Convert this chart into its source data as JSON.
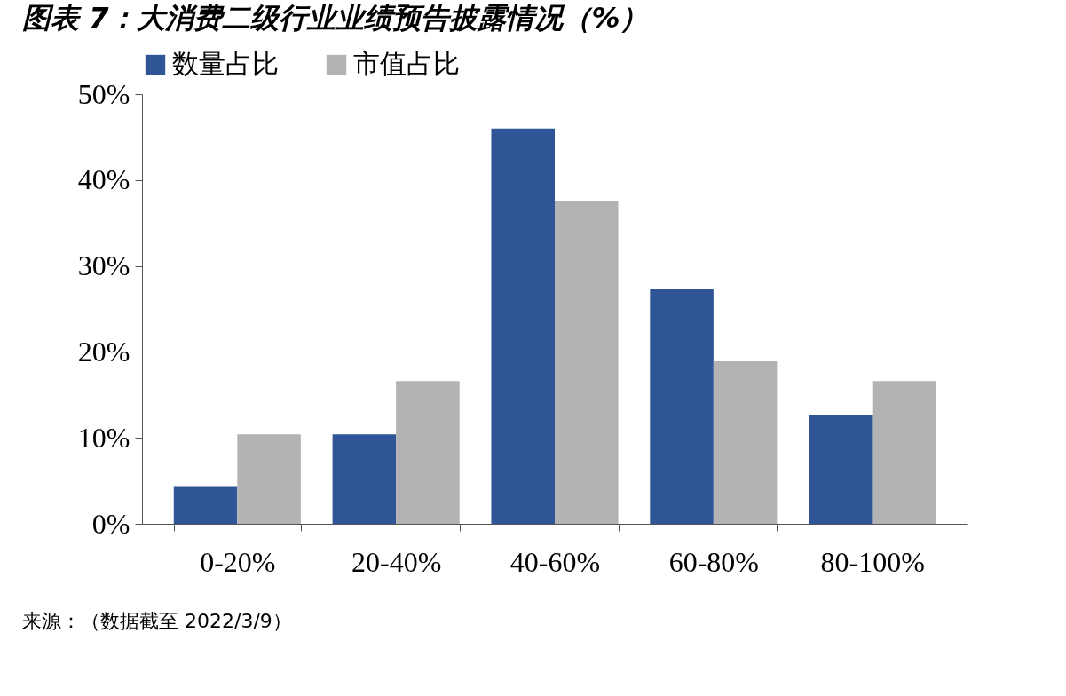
{
  "chart_data": {
    "type": "bar",
    "title": "图表 7：大消费二级行业业绩预告披露情况（%）",
    "categories": [
      "0-20%",
      "20-40%",
      "40-60%",
      "60-80%",
      "80-100%"
    ],
    "series": [
      {
        "name": "数量占比",
        "color": "#2f5597",
        "values": [
          4.3,
          10.4,
          46.0,
          27.3,
          12.7
        ]
      },
      {
        "name": "市值占比",
        "color": "#b3b3b3",
        "values": [
          10.4,
          16.6,
          37.6,
          18.9,
          16.6
        ]
      }
    ],
    "ylim": [
      0,
      50
    ],
    "yticks": [
      {
        "value": 0,
        "label": "0%"
      },
      {
        "value": 10,
        "label": "10%"
      },
      {
        "value": 20,
        "label": "20%"
      },
      {
        "value": 30,
        "label": "30%"
      },
      {
        "value": 40,
        "label": "40%"
      },
      {
        "value": 50,
        "label": "50%"
      }
    ],
    "legend": "top",
    "grid": false,
    "annotations": [
      "来源：（数据截至 2022/3/9）"
    ]
  }
}
